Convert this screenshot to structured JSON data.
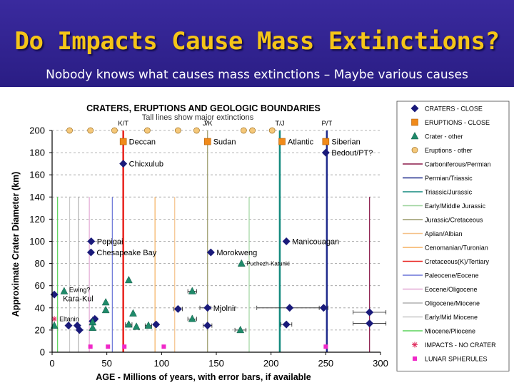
{
  "slide": {
    "title": "Do Impacts Cause Mass Extinctions?",
    "subtitle": "Nobody knows what causes mass extinctions – Maybe various causes"
  },
  "chart_data": {
    "type": "scatter",
    "title": "CRATERS, ERUPTIONS  AND GEOLOGIC BOUNDARIES",
    "subtitle": "Tall lines show major extinctions",
    "xlabel": "AGE - Millions of years, with error bars, if available",
    "ylabel": "Approximate Crater Diameter (km)",
    "xlim": [
      0,
      300
    ],
    "ylim": [
      0,
      200
    ],
    "xticks": [
      0,
      50,
      100,
      150,
      200,
      250,
      300
    ],
    "yticks": [
      0,
      20,
      40,
      60,
      80,
      100,
      120,
      140,
      160,
      180,
      200
    ],
    "grid": "horizontal dashed",
    "legend_position": "right",
    "boundaries": [
      {
        "name": "Carboniferous/Permian",
        "x": 290,
        "top": 140,
        "color": "#8b1a4a",
        "width": 1.2
      },
      {
        "name": "Permian/Triassic",
        "x": 251,
        "top": 200,
        "color": "#1f2a8c",
        "width": 2.5
      },
      {
        "name": "Triassic/Jurassic",
        "x": 208,
        "top": 200,
        "color": "#138a7e",
        "width": 2.5
      },
      {
        "name": "Early/Middle Jurassic",
        "x": 180,
        "top": 140,
        "color": "#9ed49e",
        "width": 1.2
      },
      {
        "name": "Jurassic/Cretaceous",
        "x": 142,
        "top": 200,
        "color": "#9a9a6a",
        "width": 1.2
      },
      {
        "name": "Aplian/Albian",
        "x": 112,
        "top": 140,
        "color": "#f5c28a",
        "width": 1.2
      },
      {
        "name": "Cenomanian/Turonian",
        "x": 94,
        "top": 140,
        "color": "#f5b060",
        "width": 1.2
      },
      {
        "name": "Cretaceous(K)/Tertiary",
        "x": 65,
        "top": 200,
        "color": "#e8231e",
        "width": 2.5
      },
      {
        "name": "Paleocene/Eocene",
        "x": 55,
        "top": 140,
        "color": "#6a74d8",
        "width": 1.2
      },
      {
        "name": "Eocene/Oligocene",
        "x": 34,
        "top": 140,
        "color": "#e3a8d4",
        "width": 1.2
      },
      {
        "name": "Oligocene/Miocene",
        "x": 24,
        "top": 140,
        "color": "#b0b0b0",
        "width": 1.2
      },
      {
        "name": "Early/Mid Miocene",
        "x": 16,
        "top": 140,
        "color": "#c8c8c8",
        "width": 1.2
      },
      {
        "name": "Miocene/Pliocene",
        "x": 5,
        "top": 140,
        "color": "#5ad45a",
        "width": 1.2
      }
    ],
    "boundary_labels": [
      {
        "text": "K/T",
        "x": 65
      },
      {
        "text": "J/K",
        "x": 142
      },
      {
        "text": "T/J",
        "x": 208
      },
      {
        "text": "P/T",
        "x": 251
      }
    ],
    "series": [
      {
        "name": "CRATERS - CLOSE",
        "marker": "diamond",
        "color": "#1a1a7a",
        "points": [
          {
            "x": 65,
            "y": 170,
            "label": "Chicxulub"
          },
          {
            "x": 250,
            "y": 180,
            "label": "Bedout/PT?"
          },
          {
            "x": 35.7,
            "y": 100,
            "label": "Popigai"
          },
          {
            "x": 35.5,
            "y": 90,
            "label": "Chesapeake Bay"
          },
          {
            "x": 214,
            "y": 100,
            "label": "Manicouagan"
          },
          {
            "x": 145,
            "y": 90,
            "label": "Morokweng"
          },
          {
            "x": 142,
            "y": 40,
            "label": "Mjolnir"
          },
          {
            "x": 2,
            "y": 52,
            "label": ""
          },
          {
            "x": 15,
            "y": 24,
            "label": ""
          },
          {
            "x": 23,
            "y": 24,
            "label": ""
          },
          {
            "x": 25,
            "y": 20,
            "label": ""
          },
          {
            "x": 39,
            "y": 30,
            "label": ""
          },
          {
            "x": 37,
            "y": 28,
            "label": ""
          },
          {
            "x": 95,
            "y": 25,
            "label": ""
          },
          {
            "x": 115,
            "y": 39,
            "label": ""
          },
          {
            "x": 142,
            "y": 24,
            "label": ""
          },
          {
            "x": 217,
            "y": 40,
            "label": ""
          },
          {
            "x": 248,
            "y": 40,
            "label": ""
          },
          {
            "x": 214,
            "y": 25,
            "label": ""
          },
          {
            "x": 290,
            "y": 36,
            "label": ""
          },
          {
            "x": 290,
            "y": 26,
            "label": ""
          }
        ]
      },
      {
        "name": "ERUPTIONS - CLOSE",
        "marker": "square",
        "color": "#f08a1a",
        "points": [
          {
            "x": 65,
            "y": 190,
            "label": "Deccan"
          },
          {
            "x": 142,
            "y": 190,
            "label": "Sudan"
          },
          {
            "x": 210,
            "y": 190,
            "label": "Atlantic"
          },
          {
            "x": 250,
            "y": 190,
            "label": "Siberian"
          }
        ]
      },
      {
        "name": "Crater - other",
        "marker": "triangle",
        "color": "#1f8a6a",
        "points": [
          {
            "x": 173,
            "y": 80,
            "label": "Puchezh-Katunki"
          },
          {
            "x": 11,
            "y": 55,
            "label": "Ewing?"
          },
          {
            "x": 70,
            "y": 65,
            "label": ""
          },
          {
            "x": 128,
            "y": 55,
            "label": ""
          },
          {
            "x": 2,
            "y": 24,
            "label": ""
          },
          {
            "x": 49,
            "y": 45,
            "label": ""
          },
          {
            "x": 49,
            "y": 38,
            "label": ""
          },
          {
            "x": 37,
            "y": 27,
            "label": ""
          },
          {
            "x": 37,
            "y": 22,
            "label": ""
          },
          {
            "x": 70,
            "y": 25,
            "label": ""
          },
          {
            "x": 74,
            "y": 35,
            "label": ""
          },
          {
            "x": 77,
            "y": 23,
            "label": ""
          },
          {
            "x": 88,
            "y": 24,
            "label": ""
          },
          {
            "x": 128,
            "y": 30,
            "label": ""
          },
          {
            "x": 172,
            "y": 20,
            "label": ""
          }
        ]
      },
      {
        "name": "Eruptions - other",
        "marker": "circle",
        "color": "#f5c87a",
        "points": [
          {
            "x": 16,
            "y": 200,
            "label": ""
          },
          {
            "x": 35,
            "y": 200,
            "label": ""
          },
          {
            "x": 57,
            "y": 200,
            "label": ""
          },
          {
            "x": 87,
            "y": 200,
            "label": ""
          },
          {
            "x": 115,
            "y": 200,
            "label": ""
          },
          {
            "x": 132,
            "y": 200,
            "label": ""
          },
          {
            "x": 175,
            "y": 200,
            "label": ""
          },
          {
            "x": 183,
            "y": 200,
            "label": ""
          },
          {
            "x": 201,
            "y": 200,
            "label": ""
          }
        ]
      },
      {
        "name": "IMPACTS - NO CRATER",
        "marker": "asterisk",
        "color": "#e03060",
        "points": [
          {
            "x": 2,
            "y": 30,
            "label": "Eltanin"
          }
        ]
      },
      {
        "name": "LUNAR SPHERULES",
        "marker": "square-small",
        "color": "#f028c8",
        "points": [
          {
            "x": 35,
            "y": 5,
            "label": ""
          },
          {
            "x": 51,
            "y": 5,
            "label": ""
          },
          {
            "x": 66,
            "y": 5,
            "label": ""
          },
          {
            "x": 102,
            "y": 5,
            "label": ""
          },
          {
            "x": 250,
            "y": 5,
            "label": ""
          }
        ]
      }
    ],
    "annotations": [
      {
        "text": "Kara-Kul",
        "x": 2,
        "y": 48
      }
    ],
    "error_bars": [
      {
        "x": 140,
        "y": 40,
        "xerr": 5
      },
      {
        "x": 115,
        "y": 39,
        "xerr": 4
      },
      {
        "x": 217,
        "y": 40,
        "xerr": 30
      },
      {
        "x": 248,
        "y": 40,
        "xerr": 4
      },
      {
        "x": 214,
        "y": 25,
        "xerr": 5
      },
      {
        "x": 290,
        "y": 36,
        "xerr": 15
      },
      {
        "x": 290,
        "y": 26,
        "xerr": 15
      },
      {
        "x": 128,
        "y": 55,
        "xerr": 4
      },
      {
        "x": 128,
        "y": 30,
        "xerr": 4
      },
      {
        "x": 172,
        "y": 20,
        "xerr": 5
      },
      {
        "x": 88,
        "y": 24,
        "xerr": 3
      },
      {
        "x": 142,
        "y": 24,
        "xerr": 4
      },
      {
        "x": 39,
        "y": 30,
        "xerr": 2
      },
      {
        "x": 70,
        "y": 25,
        "xerr": 3
      }
    ],
    "legend_items": [
      {
        "label": "CRATERS - CLOSE",
        "kind": "marker",
        "marker": "diamond",
        "color": "#1a1a7a"
      },
      {
        "label": "ERUPTIONS - CLOSE",
        "kind": "marker",
        "marker": "square",
        "color": "#f08a1a"
      },
      {
        "label": "Crater - other",
        "kind": "marker",
        "marker": "triangle",
        "color": "#1f8a6a"
      },
      {
        "label": "Eruptions - other",
        "kind": "marker",
        "marker": "circle",
        "color": "#f5c87a"
      },
      {
        "label": "Carboniferous/Permian",
        "kind": "line",
        "color": "#8b1a4a"
      },
      {
        "label": "Permian/Triassic",
        "kind": "line",
        "color": "#1f2a8c"
      },
      {
        "label": "Triassic/Jurassic",
        "kind": "line",
        "color": "#138a7e"
      },
      {
        "label": "Early/Middle Jurassic",
        "kind": "line",
        "color": "#9ed49e"
      },
      {
        "label": "Jurassic/Cretaceous",
        "kind": "line",
        "color": "#9a9a6a"
      },
      {
        "label": "Aplian/Albian",
        "kind": "line",
        "color": "#f5c28a"
      },
      {
        "label": "Cenomanian/Turonian",
        "kind": "line",
        "color": "#f5b060"
      },
      {
        "label": "Cretaceous(K)/Tertiary",
        "kind": "line",
        "color": "#e8231e"
      },
      {
        "label": "Paleocene/Eocene",
        "kind": "line",
        "color": "#6a74d8"
      },
      {
        "label": "Eocene/Oligocene",
        "kind": "line",
        "color": "#e3a8d4"
      },
      {
        "label": "Oligocene/Miocene",
        "kind": "line",
        "color": "#b0b0b0"
      },
      {
        "label": "Early/Mid Miocene",
        "kind": "line",
        "color": "#c8c8c8"
      },
      {
        "label": "Miocene/Pliocene",
        "kind": "line",
        "color": "#5ad45a"
      },
      {
        "label": "IMPACTS - NO CRATER",
        "kind": "marker",
        "marker": "asterisk",
        "color": "#e03060"
      },
      {
        "label": "LUNAR SPHERULES",
        "kind": "marker",
        "marker": "square-small",
        "color": "#f028c8"
      }
    ]
  }
}
